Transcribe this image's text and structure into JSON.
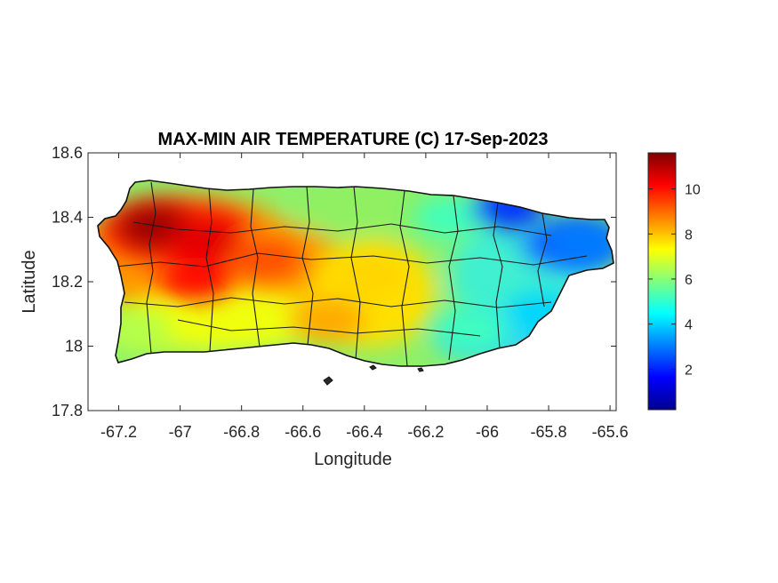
{
  "chart_data": {
    "type": "heatmap",
    "title": "MAX-MIN AIR TEMPERATURE (C) 17-Sep-2023",
    "xlabel": "Longitude",
    "ylabel": "Latitude",
    "xlim": [
      -67.3,
      -65.58
    ],
    "ylim": [
      17.8,
      18.6
    ],
    "x_ticks": [
      -67.2,
      -67,
      -66.8,
      -66.6,
      -66.4,
      -66.2,
      -66,
      -65.8,
      -65.6
    ],
    "x_tick_labels": [
      "-67.2",
      "-67",
      "-66.8",
      "-66.6",
      "-66.4",
      "-66.2",
      "-66",
      "-65.8",
      "-65.6"
    ],
    "y_ticks": [
      17.8,
      18,
      18.2,
      18.4,
      18.6
    ],
    "y_tick_labels": [
      "17.8",
      "18",
      "18.2",
      "18.4",
      "18.6"
    ],
    "colorbar": {
      "colormap": "jet",
      "range": [
        0.2,
        11.6
      ],
      "ticks": [
        2,
        4,
        6,
        8,
        10
      ],
      "tick_labels": [
        "2",
        "4",
        "6",
        "8",
        "10"
      ]
    },
    "field_hotspots": [
      {
        "lon": -67.08,
        "lat": 18.37,
        "value": 11.3
      },
      {
        "lon": -66.92,
        "lat": 18.33,
        "value": 10.5
      },
      {
        "lon": -66.95,
        "lat": 18.21,
        "value": 10.0
      },
      {
        "lon": -66.72,
        "lat": 18.27,
        "value": 9.3
      },
      {
        "lon": -66.52,
        "lat": 18.08,
        "value": 8.3
      },
      {
        "lon": -66.38,
        "lat": 18.22,
        "value": 7.8
      },
      {
        "lon": -66.12,
        "lat": 18.4,
        "value": 5.2
      },
      {
        "lon": -65.93,
        "lat": 18.43,
        "value": 2.2
      },
      {
        "lon": -65.68,
        "lat": 18.32,
        "value": 3.0
      },
      {
        "lon": -65.82,
        "lat": 18.1,
        "value": 4.0
      },
      {
        "lon": -66.05,
        "lat": 18.05,
        "value": 5.2
      },
      {
        "lon": -67.15,
        "lat": 18.05,
        "value": 6.5
      }
    ],
    "grid": false
  }
}
